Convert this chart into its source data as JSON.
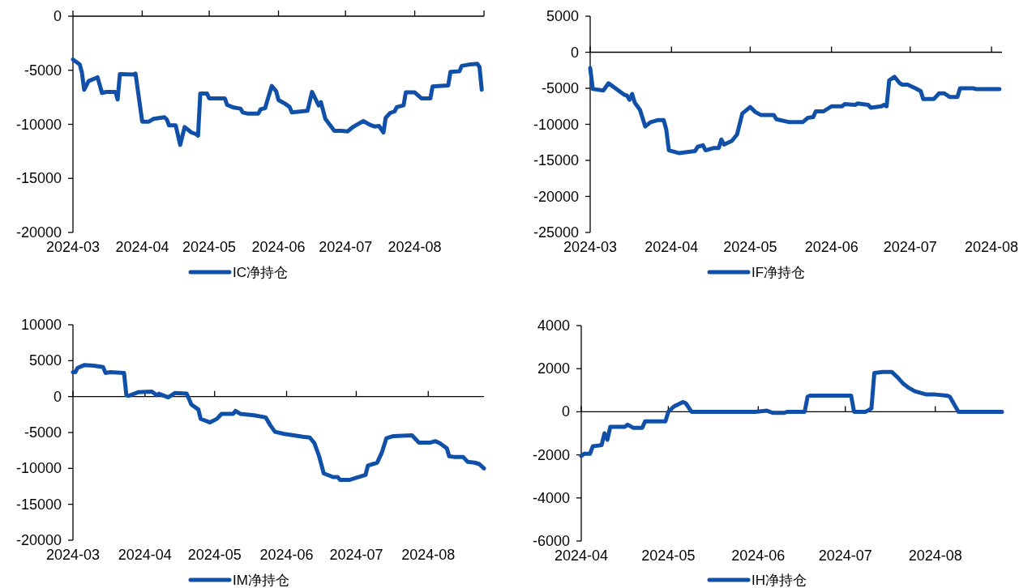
{
  "chart_data": [
    {
      "type": "line",
      "xlim": [
        "2024-03",
        "2024-09"
      ],
      "ylim": [
        -20000,
        0
      ],
      "xticks": [
        "2024-03",
        "2024-04",
        "2024-05",
        "2024-06",
        "2024-07",
        "2024-08",
        {
          "value": "2024-09",
          "label": null
        }
      ],
      "yticks": [
        0,
        -5000,
        -10000,
        -15000,
        -20000
      ],
      "legend": "bottom",
      "x": [
        "2024-03-01",
        "2024-03-04",
        "2024-03-05",
        "2024-03-06",
        "2024-03-08",
        "2024-03-12",
        "2024-03-14",
        "2024-03-16",
        "2024-03-20",
        "2024-03-21",
        "2024-03-22",
        "2024-03-28",
        "2024-03-29",
        "2024-04-01",
        "2024-04-04",
        "2024-04-06",
        "2024-04-11",
        "2024-04-12",
        "2024-04-13",
        "2024-04-16",
        "2024-04-18",
        "2024-04-20",
        "2024-04-23",
        "2024-04-25",
        "2024-04-26",
        "2024-04-27",
        "2024-04-30",
        "2024-05-01",
        "2024-05-08",
        "2024-05-09",
        "2024-05-12",
        "2024-05-15",
        "2024-05-16",
        "2024-05-18",
        "2024-05-23",
        "2024-05-24",
        "2024-05-26",
        "2024-05-29",
        "2024-05-31",
        "2024-06-01",
        "2024-06-04",
        "2024-06-06",
        "2024-06-07",
        "2024-06-14",
        "2024-06-16",
        "2024-06-19",
        "2024-06-20",
        "2024-06-22",
        "2024-06-26",
        "2024-06-29",
        "2024-07-02",
        "2024-07-04",
        "2024-07-06",
        "2024-07-09",
        "2024-07-12",
        "2024-07-14",
        "2024-07-16",
        "2024-07-18",
        "2024-07-19",
        "2024-07-21",
        "2024-07-23",
        "2024-07-24",
        "2024-07-27",
        "2024-07-28",
        "2024-08-01",
        "2024-08-04",
        "2024-08-08",
        "2024-08-09",
        "2024-08-13",
        "2024-08-16",
        "2024-08-17",
        "2024-08-21",
        "2024-08-22",
        "2024-08-26",
        "2024-08-29",
        "2024-08-30",
        "2024-08-31"
      ],
      "series": [
        {
          "name": "IC净持仓",
          "color": "#1150a8",
          "values": [
            -4000,
            -4450,
            -5200,
            -6800,
            -6000,
            -5650,
            -7100,
            -7000,
            -7000,
            -7700,
            -5350,
            -5400,
            -5300,
            -9750,
            -9750,
            -9500,
            -9350,
            -9550,
            -10100,
            -10100,
            -11900,
            -10250,
            -10750,
            -10900,
            -11050,
            -7150,
            -7150,
            -7600,
            -7600,
            -8200,
            -8450,
            -8550,
            -8900,
            -9000,
            -9000,
            -8600,
            -8500,
            -6450,
            -6950,
            -7750,
            -8100,
            -8400,
            -8900,
            -8750,
            -7000,
            -8250,
            -7950,
            -9500,
            -10600,
            -10600,
            -10650,
            -10300,
            -10050,
            -9700,
            -10050,
            -10200,
            -10150,
            -10750,
            -9400,
            -8950,
            -8800,
            -8400,
            -8250,
            -7050,
            -7050,
            -7600,
            -7600,
            -6500,
            -6450,
            -6400,
            -5150,
            -5100,
            -4600,
            -4450,
            -4400,
            -4700,
            -6800
          ]
        }
      ]
    },
    {
      "type": "line",
      "xlim": [
        "2024-03",
        "2024-08-05"
      ],
      "ylim": [
        -25000,
        5000
      ],
      "xticks": [
        "2024-03",
        "2024-04",
        "2024-05",
        "2024-06",
        "2024-07",
        "2024-08"
      ],
      "yticks": [
        5000,
        0,
        -5000,
        -10000,
        -15000,
        -20000,
        -25000
      ],
      "legend": "bottom",
      "x": [
        "2024-03-01",
        "2024-03-02",
        "2024-03-06",
        "2024-03-08",
        "2024-03-14",
        "2024-03-15",
        "2024-03-16",
        "2024-03-17",
        "2024-03-18",
        "2024-03-20",
        "2024-03-22",
        "2024-03-24",
        "2024-03-27",
        "2024-03-29",
        "2024-03-30",
        "2024-03-31",
        "2024-04-04",
        "2024-04-10",
        "2024-04-11",
        "2024-04-13",
        "2024-04-14",
        "2024-04-17",
        "2024-04-19",
        "2024-04-20",
        "2024-04-21",
        "2024-04-24",
        "2024-04-26",
        "2024-04-28",
        "2024-05-01",
        "2024-05-03",
        "2024-05-05",
        "2024-05-10",
        "2024-05-11",
        "2024-05-16",
        "2024-05-21",
        "2024-05-23",
        "2024-05-25",
        "2024-05-26",
        "2024-05-29",
        "2024-06-01",
        "2024-06-05",
        "2024-06-06",
        "2024-06-10",
        "2024-06-11",
        "2024-06-15",
        "2024-06-16",
        "2024-06-20",
        "2024-06-21",
        "2024-06-22",
        "2024-06-23",
        "2024-06-25",
        "2024-06-27",
        "2024-06-28",
        "2024-06-30",
        "2024-07-03",
        "2024-07-05",
        "2024-07-06",
        "2024-07-10",
        "2024-07-12",
        "2024-07-14",
        "2024-07-16",
        "2024-07-19",
        "2024-07-20",
        "2024-07-25",
        "2024-07-26",
        "2024-08-04"
      ],
      "series": [
        {
          "name": "IF净持仓",
          "color": "#1150a8",
          "values": [
            -2200,
            -5100,
            -5300,
            -4300,
            -5900,
            -6000,
            -6600,
            -5800,
            -7000,
            -8000,
            -10300,
            -9700,
            -9400,
            -9400,
            -10700,
            -13600,
            -14000,
            -13700,
            -13100,
            -12900,
            -13600,
            -13300,
            -13300,
            -12100,
            -12800,
            -12300,
            -11400,
            -8500,
            -7600,
            -8300,
            -8700,
            -8700,
            -9300,
            -9700,
            -9700,
            -9100,
            -9000,
            -8200,
            -8200,
            -7500,
            -7500,
            -7200,
            -7300,
            -7100,
            -7300,
            -7700,
            -7500,
            -7300,
            -7500,
            -3900,
            -3400,
            -4300,
            -4500,
            -4500,
            -5000,
            -5400,
            -6500,
            -6500,
            -5700,
            -5700,
            -6200,
            -6200,
            -5000,
            -5000,
            -5100,
            -5100
          ]
        }
      ]
    },
    {
      "type": "line",
      "xlim": [
        "2024-03",
        "2024-08-25"
      ],
      "ylim": [
        -20000,
        10000
      ],
      "xticks": [
        "2024-03",
        "2024-04",
        "2024-05",
        "2024-06",
        "2024-07",
        "2024-08"
      ],
      "yticks": [
        10000,
        5000,
        0,
        -5000,
        -10000,
        -15000,
        -20000
      ],
      "legend": "bottom",
      "x": [
        "2024-03-01",
        "2024-03-02",
        "2024-03-03",
        "2024-03-06",
        "2024-03-10",
        "2024-03-14",
        "2024-03-15",
        "2024-03-17",
        "2024-03-23",
        "2024-03-24",
        "2024-03-25",
        "2024-03-29",
        "2024-04-04",
        "2024-04-06",
        "2024-04-07",
        "2024-04-11",
        "2024-04-14",
        "2024-04-19",
        "2024-04-21",
        "2024-04-24",
        "2024-04-25",
        "2024-04-29",
        "2024-05-02",
        "2024-05-04",
        "2024-05-09",
        "2024-05-10",
        "2024-05-12",
        "2024-05-18",
        "2024-05-23",
        "2024-05-25",
        "2024-05-27",
        "2024-05-31",
        "2024-06-04",
        "2024-06-08",
        "2024-06-11",
        "2024-06-13",
        "2024-06-15",
        "2024-06-17",
        "2024-06-21",
        "2024-06-23",
        "2024-06-24",
        "2024-06-28",
        "2024-07-01",
        "2024-07-05",
        "2024-07-06",
        "2024-07-10",
        "2024-07-12",
        "2024-07-14",
        "2024-07-17",
        "2024-07-25",
        "2024-07-28",
        "2024-08-02",
        "2024-08-04",
        "2024-08-06",
        "2024-08-09",
        "2024-08-10",
        "2024-08-12",
        "2024-08-16",
        "2024-08-18",
        "2024-08-21",
        "2024-08-23",
        "2024-08-25"
      ],
      "series": [
        {
          "name": "IM净持仓",
          "color": "#1150a8",
          "values": [
            3400,
            3400,
            4000,
            4400,
            4300,
            4100,
            3300,
            3400,
            3300,
            200,
            100,
            600,
            700,
            200,
            400,
            -100,
            500,
            400,
            -1100,
            -1800,
            -3100,
            -3600,
            -3100,
            -2400,
            -2400,
            -2000,
            -2400,
            -2600,
            -2900,
            -4000,
            -4900,
            -5200,
            -5400,
            -5600,
            -5700,
            -6500,
            -8300,
            -10700,
            -11200,
            -11200,
            -11600,
            -11600,
            -11300,
            -10900,
            -9600,
            -9200,
            -7800,
            -5800,
            -5500,
            -5400,
            -6400,
            -6400,
            -6200,
            -6500,
            -7200,
            -8300,
            -8400,
            -8400,
            -9100,
            -9200,
            -9400,
            -10000
          ]
        }
      ]
    },
    {
      "type": "line",
      "xlim": [
        "2024-04",
        "2024-08-24"
      ],
      "ylim": [
        -6000,
        4000
      ],
      "xticks": [
        "2024-04",
        "2024-05",
        "2024-06",
        "2024-07",
        "2024-08"
      ],
      "yticks": [
        4000,
        2000,
        0,
        -2000,
        -4000,
        -6000
      ],
      "legend": "bottom",
      "x": [
        "2024-04-01",
        "2024-04-02",
        "2024-04-04",
        "2024-04-05",
        "2024-04-08",
        "2024-04-09",
        "2024-04-10",
        "2024-04-11",
        "2024-04-16",
        "2024-04-17",
        "2024-04-19",
        "2024-04-22",
        "2024-04-23",
        "2024-04-30",
        "2024-05-01",
        "2024-05-03",
        "2024-05-06",
        "2024-05-07",
        "2024-05-09",
        "2024-05-31",
        "2024-06-04",
        "2024-06-06",
        "2024-06-10",
        "2024-06-11",
        "2024-06-17",
        "2024-06-18",
        "2024-06-19",
        "2024-07-03",
        "2024-07-04",
        "2024-07-08",
        "2024-07-10",
        "2024-07-11",
        "2024-07-14",
        "2024-07-17",
        "2024-07-19",
        "2024-07-21",
        "2024-07-23",
        "2024-07-25",
        "2024-07-29",
        "2024-08-01",
        "2024-08-05",
        "2024-08-06",
        "2024-08-09",
        "2024-08-24"
      ],
      "series": [
        {
          "name": "IH净持仓",
          "color": "#1150a8",
          "values": [
            -2050,
            -1950,
            -1950,
            -1600,
            -1550,
            -1000,
            -1300,
            -700,
            -700,
            -600,
            -750,
            -750,
            -450,
            -450,
            0,
            250,
            450,
            400,
            0,
            0,
            50,
            -50,
            -50,
            0,
            0,
            700,
            750,
            750,
            0,
            0,
            150,
            1800,
            1850,
            1850,
            1600,
            1300,
            1100,
            950,
            800,
            800,
            750,
            700,
            0,
            0
          ]
        }
      ]
    }
  ]
}
